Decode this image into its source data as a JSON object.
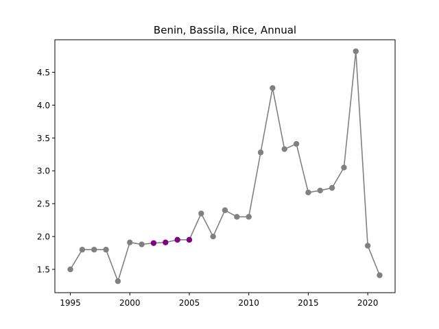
{
  "chart_data": {
    "type": "line",
    "title": "Benin, Bassila, Rice, Annual",
    "xlabel": "",
    "ylabel": "",
    "xlim": [
      1993.7,
      2022.3
    ],
    "ylim": [
      1.145,
      4.995
    ],
    "x_ticks": [
      1995,
      2000,
      2005,
      2010,
      2015,
      2020
    ],
    "y_ticks": [
      1.5,
      2.0,
      2.5,
      3.0,
      3.5,
      4.0,
      4.5
    ],
    "grid": false,
    "line_color": "#808080",
    "highlight_color": "#800080",
    "highlight_years": [
      2002,
      2003,
      2004,
      2005
    ],
    "series": [
      {
        "x": [
          1995,
          1996,
          1997,
          1998,
          1999,
          2000,
          2001,
          2002,
          2003,
          2004,
          2005,
          2006,
          2007,
          2008,
          2009,
          2010,
          2011,
          2012,
          2013,
          2014,
          2015,
          2016,
          2017,
          2018,
          2019,
          2020,
          2021
        ],
        "values": [
          1.5,
          1.8,
          1.8,
          1.8,
          1.32,
          1.91,
          1.88,
          1.9,
          1.91,
          1.95,
          1.95,
          2.35,
          2.0,
          2.4,
          2.3,
          2.3,
          3.28,
          4.26,
          3.33,
          3.41,
          2.67,
          2.7,
          2.74,
          3.05,
          4.82,
          1.86,
          1.41
        ]
      }
    ]
  }
}
